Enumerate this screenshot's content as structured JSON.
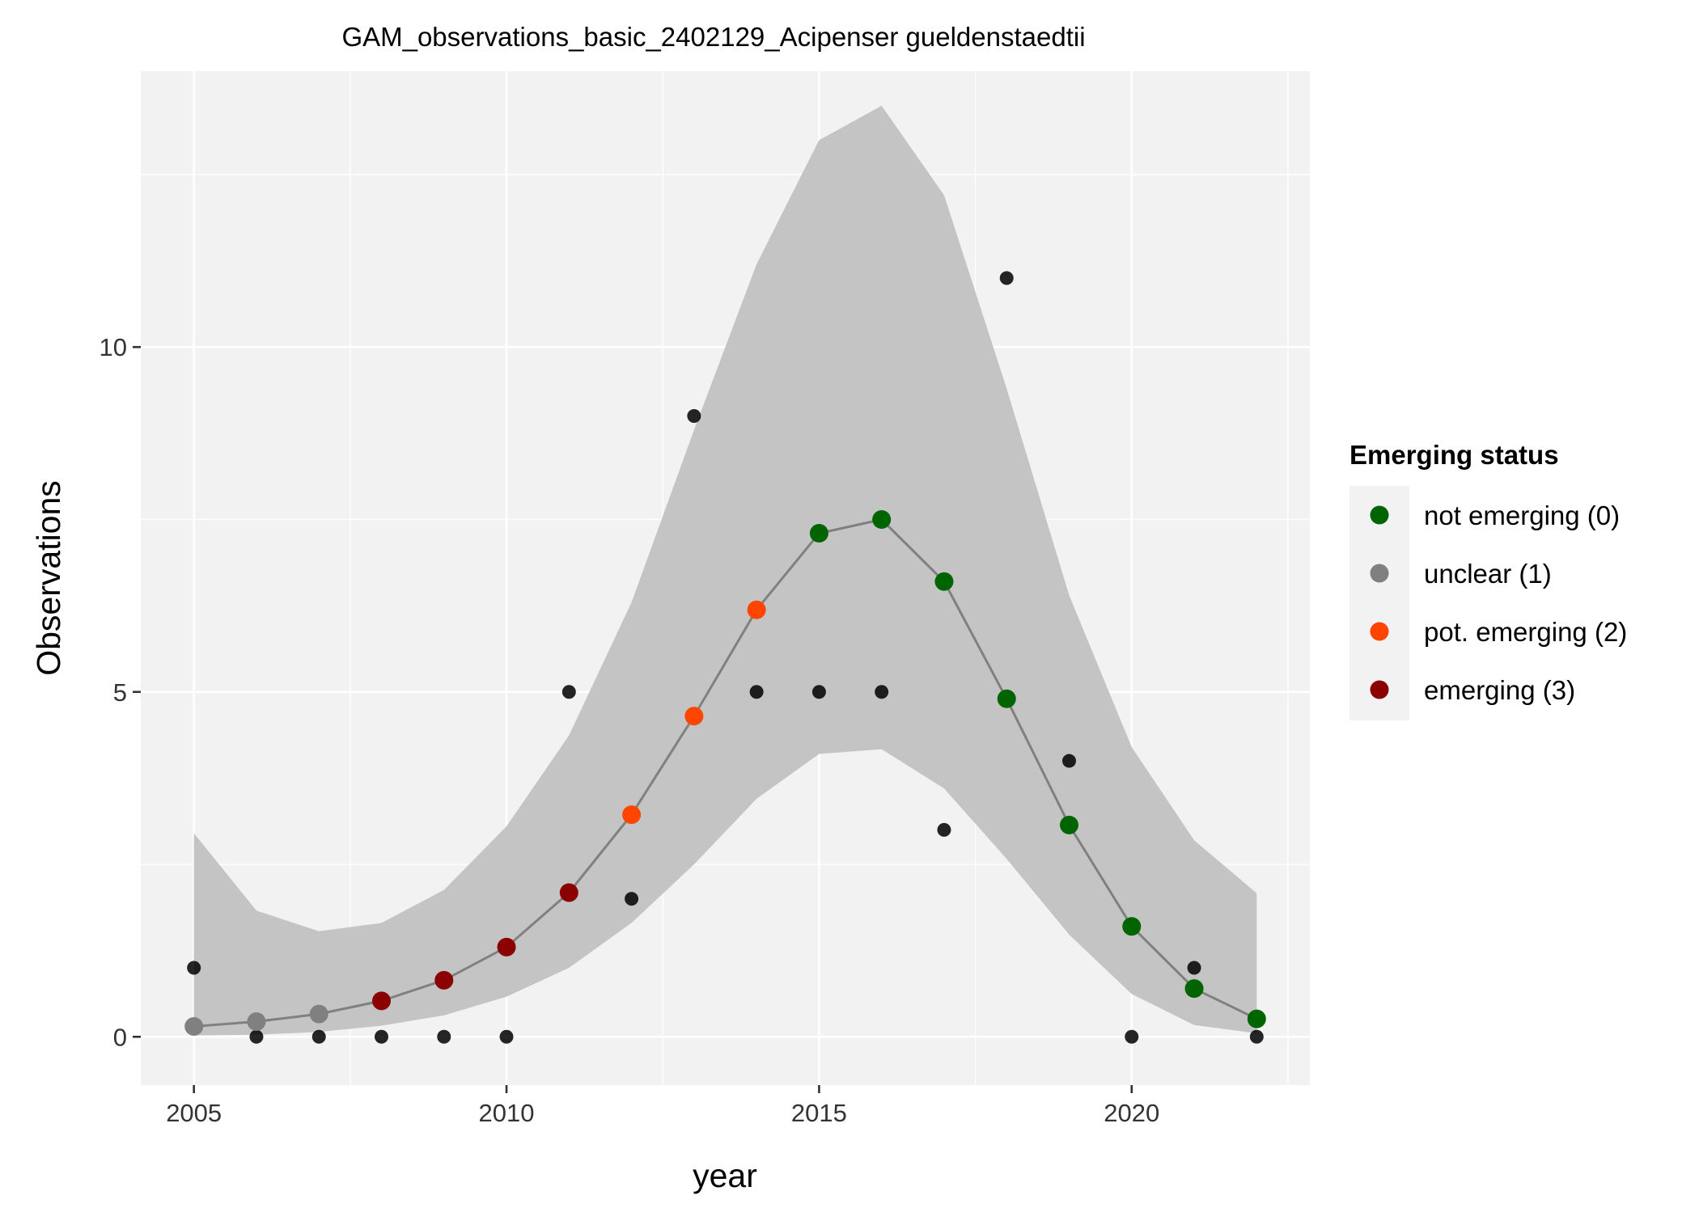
{
  "colors": {
    "panel_bg": "#f2f2f2",
    "grid_major": "#ffffff",
    "ribbon": "#c4c4c4",
    "fit_line": "#808080",
    "observed_point": "#000000",
    "not_emerging": "#006400",
    "unclear": "#808080",
    "pot_emerging": "#ff4500",
    "emerging": "#8b0000"
  },
  "chart_data": {
    "type": "line",
    "title": "GAM_observations_basic_2402129_Acipenser gueldenstaedtii",
    "xlabel": "year",
    "ylabel": "Observations",
    "xlim": [
      2004.15,
      2022.85
    ],
    "ylim": [
      -0.7,
      14.0
    ],
    "x_ticks": [
      2005,
      2010,
      2015,
      2020
    ],
    "x_tick_labels": [
      "2005",
      "2010",
      "2015",
      "2020"
    ],
    "y_ticks": [
      0,
      5,
      10
    ],
    "y_tick_labels": [
      "0",
      "5",
      "10"
    ],
    "grid": true,
    "legend": {
      "title": "Emerging status",
      "placement": "right",
      "entries": [
        {
          "label": "not emerging (0)",
          "color": "#006400"
        },
        {
          "label": "unclear (1)",
          "color": "#808080"
        },
        {
          "label": "pot. emerging (2)",
          "color": "#ff4500"
        },
        {
          "label": "emerging (3)",
          "color": "#8b0000"
        }
      ]
    },
    "observed": {
      "x": [
        2005,
        2006,
        2007,
        2008,
        2009,
        2010,
        2011,
        2012,
        2013,
        2014,
        2015,
        2016,
        2017,
        2018,
        2019,
        2020,
        2021,
        2022
      ],
      "y": [
        1,
        0,
        0,
        0,
        0,
        0,
        5,
        2,
        9,
        5,
        5,
        5,
        3,
        11,
        4,
        0,
        1,
        0
      ]
    },
    "fit": {
      "x": [
        2005,
        2006,
        2007,
        2008,
        2009,
        2010,
        2011,
        2012,
        2013,
        2014,
        2015,
        2016,
        2017,
        2018,
        2019,
        2020,
        2021,
        2022
      ],
      "y": [
        0.15,
        0.22,
        0.33,
        0.52,
        0.82,
        1.3,
        2.09,
        3.22,
        4.65,
        6.19,
        7.3,
        7.5,
        6.6,
        4.9,
        3.07,
        1.6,
        0.7,
        0.26
      ],
      "status": [
        1,
        1,
        1,
        3,
        3,
        3,
        3,
        2,
        2,
        2,
        0,
        0,
        0,
        0,
        0,
        0,
        0,
        0
      ],
      "lower": [
        0.02,
        0.03,
        0.07,
        0.16,
        0.31,
        0.58,
        1.0,
        1.65,
        2.5,
        3.45,
        4.1,
        4.17,
        3.6,
        2.58,
        1.48,
        0.62,
        0.17,
        0.05
      ],
      "upper": [
        2.95,
        1.83,
        1.53,
        1.65,
        2.13,
        3.05,
        4.37,
        6.3,
        8.8,
        11.2,
        13.0,
        13.5,
        12.2,
        9.4,
        6.4,
        4.2,
        2.85,
        2.08
      ]
    }
  }
}
